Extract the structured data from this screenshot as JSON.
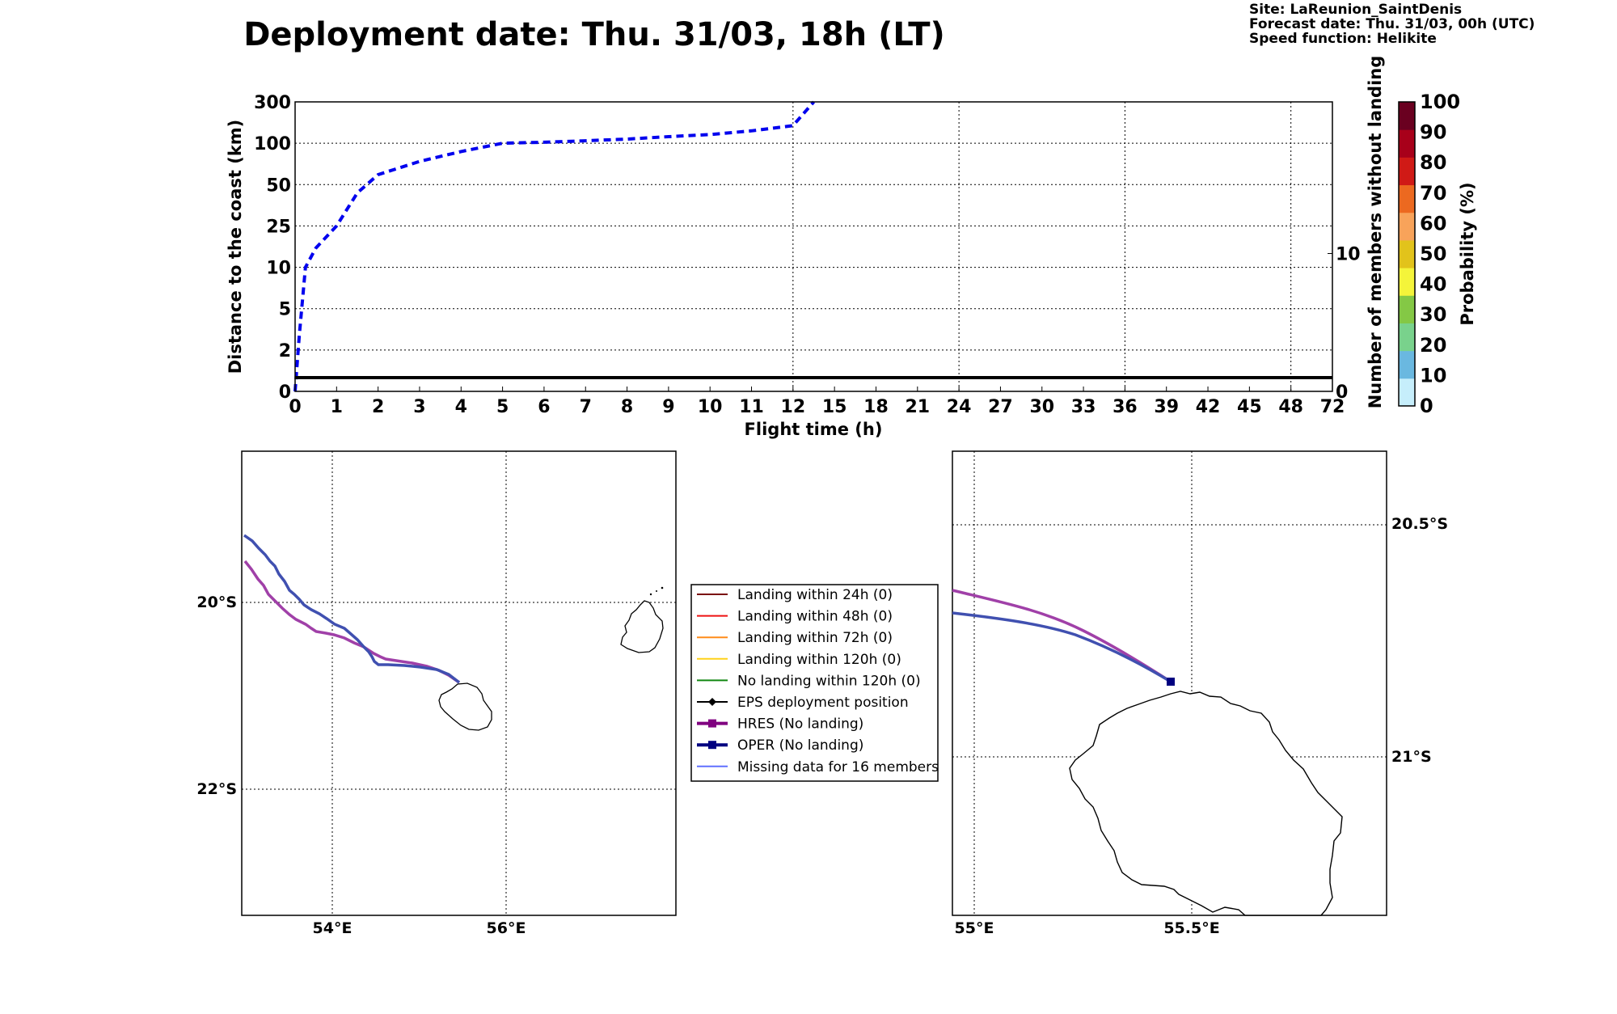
{
  "title": "Deployment date: Thu. 31/03, 18h (LT)",
  "info_lines": [
    "Site: LaReunion_SaintDenis",
    "Forecast date: Thu. 31/03, 00h (UTC)",
    "Speed function: Helikite"
  ],
  "colors": {
    "eps_line": "#0000ee",
    "hres": "#800080",
    "hres_line": "#a040a8",
    "oper": "#000080",
    "oper_line": "#4050b0",
    "missing": "#6070ff",
    "land_24h": "#7a0c0c",
    "land_48h": "#ee1111",
    "land_72h": "#ff8c1a",
    "land_120h": "#ffd21a",
    "no_land": "#118811",
    "eps_pos": "#000000"
  },
  "chart_data": [
    {
      "type": "line",
      "id": "distance_vs_time",
      "xlabel": "Flight time (h)",
      "ylabel": "Distance to the coast (km)",
      "y2label": "Number of members without landing",
      "x_ticks": [
        "0",
        "1",
        "2",
        "3",
        "4",
        "5",
        "6",
        "7",
        "8",
        "9",
        "10",
        "11",
        "12",
        "15",
        "18",
        "21",
        "24",
        "27",
        "30",
        "33",
        "36",
        "39",
        "42",
        "45",
        "48",
        "72"
      ],
      "x_tick_hours": [
        0,
        1,
        2,
        3,
        4,
        5,
        6,
        7,
        8,
        9,
        10,
        11,
        12,
        15,
        18,
        21,
        24,
        27,
        30,
        33,
        36,
        39,
        42,
        45,
        48,
        72
      ],
      "y_ticks": [
        "0",
        "2",
        "5",
        "10",
        "25",
        "50",
        "100",
        "300"
      ],
      "y_tick_values": [
        0,
        2,
        5,
        10,
        25,
        50,
        100,
        300
      ],
      "y2_ticks": [
        "0",
        "10"
      ],
      "y2_tick_values": [
        0,
        10
      ],
      "y2lim": [
        0,
        21
      ],
      "grid": true,
      "series": [
        {
          "style": "dashed",
          "x": [
            0,
            0.1,
            0.25,
            0.5,
            1,
            1.5,
            2,
            3,
            4,
            5,
            6,
            7,
            8,
            9,
            10,
            11,
            12,
            13.5
          ],
          "y": [
            0,
            3,
            10,
            17,
            25,
            45,
            62,
            78,
            90,
            100,
            105,
            112,
            120,
            132,
            142,
            160,
            185,
            300
          ]
        },
        {
          "style": "solid",
          "axis": "y2",
          "x": [
            0,
            72
          ],
          "y": [
            1,
            1
          ]
        }
      ]
    }
  ],
  "colorbar": {
    "label": "Probability (%)",
    "ticks": [
      "0",
      "10",
      "20",
      "30",
      "40",
      "50",
      "60",
      "70",
      "80",
      "90",
      "100"
    ],
    "colors": [
      "#c6eefb",
      "#6ab8e0",
      "#79d28c",
      "#84c845",
      "#f4f43a",
      "#e2c31b",
      "#f8a35a",
      "#ec6920",
      "#d01a16",
      "#a8001a",
      "#6a0020"
    ]
  },
  "map_left": {
    "lon_labels": [
      "54°E",
      "56°E"
    ],
    "lat_labels": [
      "20°S",
      "22°S"
    ],
    "lon_values": [
      54,
      56
    ],
    "lat_values": [
      20,
      22
    ]
  },
  "map_right": {
    "lon_labels": [
      "55°E",
      "55.5°E"
    ],
    "lat_labels": [
      "20.5°S",
      "21°S"
    ],
    "lon_values": [
      55,
      55.5
    ],
    "lat_values": [
      20.5,
      21
    ]
  },
  "legend": {
    "items": [
      {
        "label": "Landing within 24h (0)",
        "key": "land_24h",
        "marker": "none"
      },
      {
        "label": "Landing within 48h (0)",
        "key": "land_48h",
        "marker": "none"
      },
      {
        "label": "Landing within 72h (0)",
        "key": "land_72h",
        "marker": "none"
      },
      {
        "label": "Landing within 120h (0)",
        "key": "land_120h",
        "marker": "none"
      },
      {
        "label": "No landing within 120h (0)",
        "key": "no_land",
        "marker": "none"
      },
      {
        "label": "EPS deployment position",
        "key": "eps_pos",
        "marker": "diamond"
      },
      {
        "label": "HRES (No landing)",
        "key": "hres",
        "marker": "square"
      },
      {
        "label": "OPER (No landing)",
        "key": "oper",
        "marker": "square"
      },
      {
        "label": "Missing data for 16 members",
        "key": "missing",
        "marker": "none"
      }
    ]
  }
}
